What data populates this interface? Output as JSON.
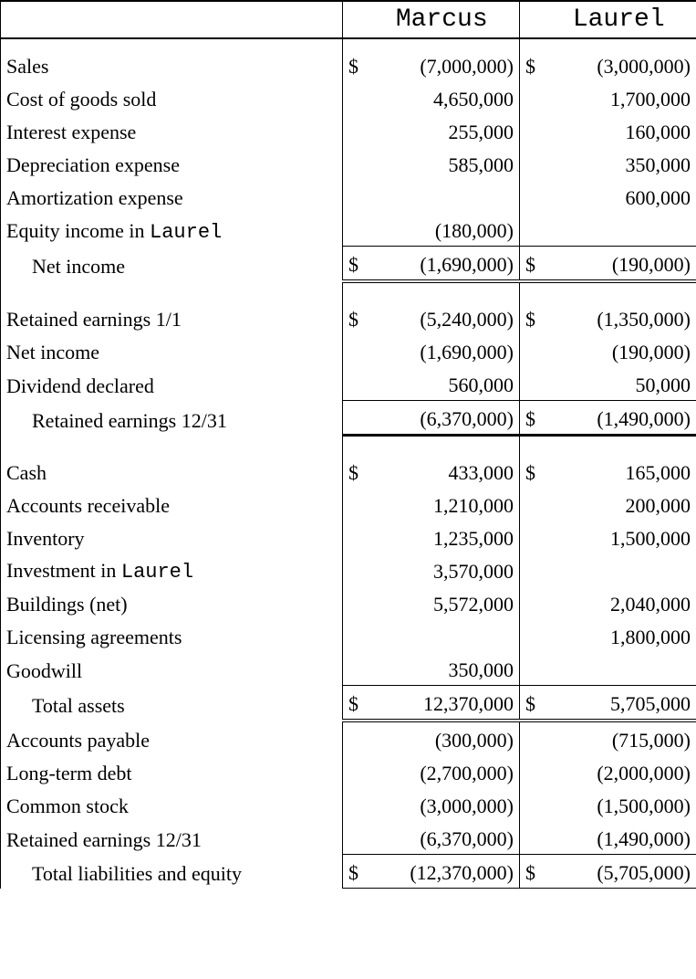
{
  "header": {
    "col1": "Marcus",
    "col2": "Laurel"
  },
  "income": [
    {
      "label": "Sales",
      "s1": "$",
      "v1": "(7,000,000)",
      "s2": "$",
      "v2": "(3,000,000)"
    },
    {
      "label": "Cost of goods sold",
      "s1": "",
      "v1": "4,650,000",
      "s2": "",
      "v2": "1,700,000"
    },
    {
      "label": "Interest expense",
      "s1": "",
      "v1": "255,000",
      "s2": "",
      "v2": "160,000"
    },
    {
      "label": "Depreciation expense",
      "s1": "",
      "v1": "585,000",
      "s2": "",
      "v2": "350,000"
    },
    {
      "label": "Amortization expense",
      "s1": "",
      "v1": "",
      "s2": "",
      "v2": "600,000"
    },
    {
      "label_pre": "Equity income in ",
      "label_mono": "Laurel",
      "s1": "",
      "v1": "(180,000)",
      "s2": "",
      "v2": ""
    }
  ],
  "net_income": {
    "label": "Net income",
    "s1": "$",
    "v1": "(1,690,000)",
    "s2": "$",
    "v2": "(190,000)"
  },
  "retained": [
    {
      "label": "Retained earnings 1/1",
      "s1": "$",
      "v1": "(5,240,000)",
      "s2": "$",
      "v2": "(1,350,000)"
    },
    {
      "label": "Net income",
      "s1": "",
      "v1": "(1,690,000)",
      "s2": "",
      "v2": "(190,000)"
    },
    {
      "label": "Dividend declared",
      "s1": "",
      "v1": "560,000",
      "s2": "",
      "v2": "50,000"
    }
  ],
  "retained_total": {
    "label": "Retained earnings 12/31",
    "s1": "",
    "v1": "(6,370,000)",
    "s2": "$",
    "v2": "(1,490,000)"
  },
  "assets": [
    {
      "label": "Cash",
      "s1": "$",
      "v1": "433,000",
      "s2": "$",
      "v2": "165,000"
    },
    {
      "label": "Accounts receivable",
      "s1": "",
      "v1": "1,210,000",
      "s2": "",
      "v2": "200,000"
    },
    {
      "label": "Inventory",
      "s1": "",
      "v1": "1,235,000",
      "s2": "",
      "v2": "1,500,000"
    },
    {
      "label_pre": "Investment in ",
      "label_mono": "Laurel",
      "s1": "",
      "v1": "3,570,000",
      "s2": "",
      "v2": ""
    },
    {
      "label": "Buildings (net)",
      "s1": "",
      "v1": "5,572,000",
      "s2": "",
      "v2": "2,040,000"
    },
    {
      "label": "Licensing agreements",
      "s1": "",
      "v1": "",
      "s2": "",
      "v2": "1,800,000"
    },
    {
      "label": "Goodwill",
      "s1": "",
      "v1": "350,000",
      "s2": "",
      "v2": ""
    }
  ],
  "assets_total": {
    "label": "Total assets",
    "s1": "$",
    "v1": "12,370,000",
    "s2": "$",
    "v2": "5,705,000"
  },
  "liab": [
    {
      "label": "Accounts payable",
      "s1": "",
      "v1": "(300,000)",
      "s2": "",
      "v2": "(715,000)"
    },
    {
      "label": "Long-term debt",
      "s1": "",
      "v1": "(2,700,000)",
      "s2": "",
      "v2": "(2,000,000)"
    },
    {
      "label": "Common stock",
      "s1": "",
      "v1": "(3,000,000)",
      "s2": "",
      "v2": "(1,500,000)"
    },
    {
      "label": "Retained earnings 12/31",
      "s1": "",
      "v1": "(6,370,000)",
      "s2": "",
      "v2": "(1,490,000)"
    }
  ],
  "liab_total": {
    "label": "Total liabilities and equity",
    "s1": "$",
    "v1": "(12,370,000)",
    "s2": "$",
    "v2": "(5,705,000)"
  }
}
